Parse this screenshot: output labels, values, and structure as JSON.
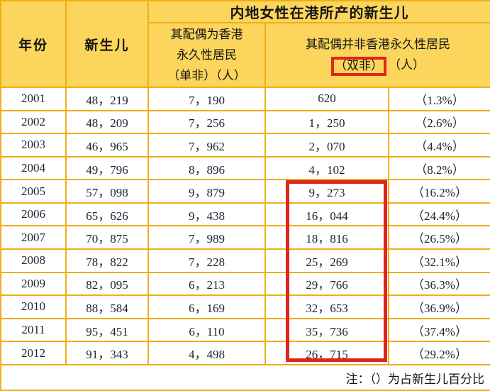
{
  "colors": {
    "header_bg": "#fbd55c",
    "grid_line": "#f0ae18",
    "red_highlight": "#e2251b",
    "data_text": "#1b2433",
    "row_bg": "#ffffff"
  },
  "table": {
    "span_header": "内地女性在港所产的新生儿",
    "columns": {
      "year": "年份",
      "newborns": "新生儿",
      "single_non_lines": [
        "其配偶为香港",
        "永久性居民",
        "（单非）（人）"
      ],
      "double_non_line1": "其配偶并非香港永久性居民",
      "double_non_boxed": "（双非）",
      "double_non_suffix": "（人）"
    },
    "rows": [
      {
        "year": "2001",
        "newborns": "48，219",
        "single_non": "7，190",
        "double_non": "620",
        "pct": "（1.3%）"
      },
      {
        "year": "2002",
        "newborns": "48，209",
        "single_non": "7，256",
        "double_non": "1，250",
        "pct": "（2.6%）"
      },
      {
        "year": "2003",
        "newborns": "46，965",
        "single_non": "7，962",
        "double_non": "2，070",
        "pct": "（4.4%）"
      },
      {
        "year": "2004",
        "newborns": "49，796",
        "single_non": "8，896",
        "double_non": "4，102",
        "pct": "（8.2%）"
      },
      {
        "year": "2005",
        "newborns": "57，098",
        "single_non": "9，879",
        "double_non": "9，273",
        "pct": "（16.2%）"
      },
      {
        "year": "2006",
        "newborns": "65，626",
        "single_non": "9，438",
        "double_non": "16，044",
        "pct": "（24.4%）"
      },
      {
        "year": "2007",
        "newborns": "70，875",
        "single_non": "7，989",
        "double_non": "18，816",
        "pct": "（26.5%）"
      },
      {
        "year": "2008",
        "newborns": "78，822",
        "single_non": "7，228",
        "double_non": "25，269",
        "pct": "（32.1%）"
      },
      {
        "year": "2009",
        "newborns": "82，095",
        "single_non": "6，213",
        "double_non": "29，766",
        "pct": "（36.3%）"
      },
      {
        "year": "2010",
        "newborns": "88，584",
        "single_non": "6，169",
        "double_non": "32，653",
        "pct": "（36.9%）"
      },
      {
        "year": "2011",
        "newborns": "95，451",
        "single_non": "6，110",
        "double_non": "35，736",
        "pct": "（37.4%）"
      },
      {
        "year": "2012",
        "newborns": "91，343",
        "single_non": "4，498",
        "double_non": "26，715",
        "pct": "（29.2%）"
      }
    ],
    "note": "注：（）为占新生儿百分比",
    "highlight": {
      "column": "double_non",
      "from_year": "2005",
      "to_year": "2012"
    }
  },
  "chart_data": {
    "type": "table",
    "title": "内地女性在港所产的新生儿",
    "columns": [
      "年份",
      "新生儿",
      "其配偶为香港永久性居民（单非）（人）",
      "其配偶并非香港永久性居民（双非）（人）",
      "占新生儿百分比"
    ],
    "rows": [
      [
        2001,
        48219,
        7190,
        620,
        "1.3%"
      ],
      [
        2002,
        48209,
        7256,
        1250,
        "2.6%"
      ],
      [
        2003,
        46965,
        7962,
        2070,
        "4.4%"
      ],
      [
        2004,
        49796,
        8896,
        4102,
        "8.2%"
      ],
      [
        2005,
        57098,
        9879,
        9273,
        "16.2%"
      ],
      [
        2006,
        65626,
        9438,
        16044,
        "24.4%"
      ],
      [
        2007,
        70875,
        7989,
        18816,
        "26.5%"
      ],
      [
        2008,
        78822,
        7228,
        25269,
        "32.1%"
      ],
      [
        2009,
        82095,
        6213,
        29766,
        "36.3%"
      ],
      [
        2010,
        88584,
        6169,
        32653,
        "36.9%"
      ],
      [
        2011,
        95451,
        6110,
        35736,
        "37.4%"
      ],
      [
        2012,
        91343,
        4498,
        26715,
        "29.2%"
      ]
    ],
    "note": "注：（）为占新生儿百分比",
    "highlighted": "（双非）header label and double-non values for 2005-2012 are outlined in red"
  }
}
